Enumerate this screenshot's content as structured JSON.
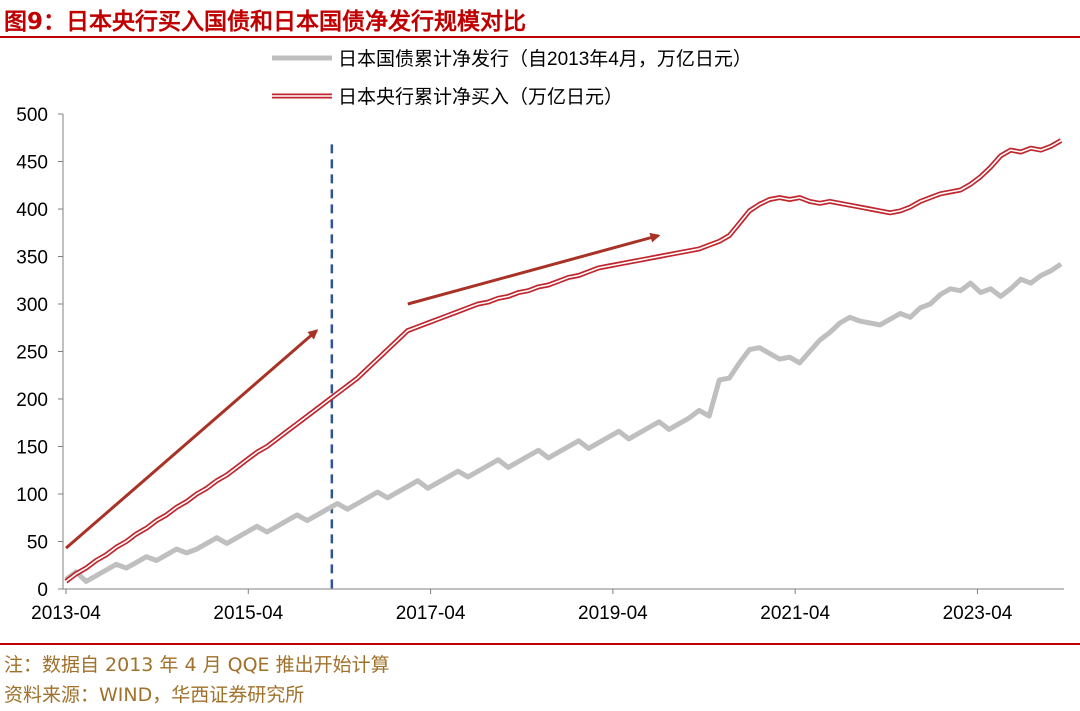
{
  "header": {
    "title": "图9：日本央行买入国债和日本国债净发行规模对比"
  },
  "footer": {
    "note": "注：数据自 2013 年 4 月 QQE 推出开始计算",
    "source": "资料来源：WIND，华西证券研究所"
  },
  "chart_data": {
    "type": "line",
    "title": "图9：日本央行买入国债和日本国债净发行规模对比",
    "xlabel": "",
    "ylabel": "",
    "x_tick_labels": [
      "2013-04",
      "2015-04",
      "2017-04",
      "2019-04",
      "2021-04",
      "2023-04"
    ],
    "x_start": "2013-04",
    "x_end": "2024-03",
    "ylim": [
      0,
      500
    ],
    "y_ticks": [
      0,
      50,
      100,
      150,
      200,
      250,
      300,
      350,
      400,
      450,
      500
    ],
    "grid": false,
    "legend_position": "top-center",
    "vline": {
      "x": "2016-03",
      "style": "dashed",
      "color": "#2f5597"
    },
    "annotations": [
      {
        "type": "arrow",
        "from": [
          "2013-04",
          43
        ],
        "to": [
          "2016-01",
          272
        ],
        "color": "#a93226"
      },
      {
        "type": "arrow",
        "from": [
          "2017-01",
          300
        ],
        "to": [
          "2019-10",
          372
        ],
        "color": "#a93226"
      }
    ],
    "series": [
      {
        "name": "日本国债累计净发行（自2013年4月，万亿日元）",
        "color": "#bfbfbf",
        "style": "thick",
        "values": [
          10,
          18,
          8,
          14,
          20,
          26,
          22,
          28,
          34,
          30,
          36,
          42,
          38,
          42,
          48,
          54,
          48,
          54,
          60,
          66,
          60,
          66,
          72,
          78,
          72,
          78,
          84,
          90,
          84,
          90,
          96,
          102,
          96,
          102,
          108,
          114,
          106,
          112,
          118,
          124,
          118,
          124,
          130,
          136,
          128,
          134,
          140,
          146,
          138,
          144,
          150,
          156,
          148,
          154,
          160,
          166,
          158,
          164,
          170,
          176,
          168,
          174,
          180,
          188,
          182,
          220,
          222,
          238,
          252,
          254,
          248,
          242,
          244,
          238,
          250,
          262,
          270,
          280,
          286,
          282,
          280,
          278,
          284,
          290,
          286,
          296,
          300,
          310,
          316,
          314,
          322,
          312,
          316,
          308,
          316,
          326,
          322,
          330,
          335,
          342
        ]
      },
      {
        "name": "日本央行累计净买入（万亿日元）",
        "color": "#c0262d",
        "style": "double",
        "values": [
          8,
          16,
          22,
          30,
          36,
          44,
          50,
          58,
          64,
          72,
          78,
          86,
          92,
          100,
          106,
          114,
          120,
          128,
          136,
          144,
          150,
          158,
          166,
          174,
          182,
          190,
          198,
          206,
          214,
          222,
          232,
          242,
          252,
          262,
          272,
          276,
          280,
          284,
          288,
          292,
          296,
          300,
          302,
          306,
          308,
          312,
          314,
          318,
          320,
          324,
          328,
          330,
          334,
          338,
          340,
          342,
          344,
          346,
          348,
          350,
          352,
          354,
          356,
          358,
          362,
          366,
          372,
          385,
          398,
          405,
          410,
          412,
          410,
          412,
          408,
          406,
          408,
          406,
          404,
          402,
          400,
          398,
          396,
          398,
          402,
          408,
          412,
          416,
          418,
          420,
          426,
          434,
          444,
          456,
          462,
          460,
          464,
          462,
          466,
          472
        ]
      }
    ]
  }
}
